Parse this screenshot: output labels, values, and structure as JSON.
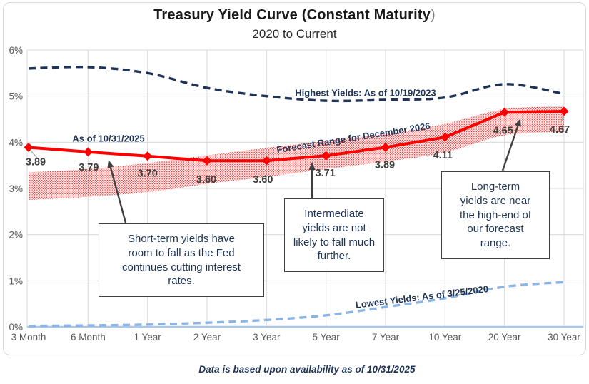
{
  "header": {
    "title_bold": "Treasury Yield Curve (Constant Maturity",
    "title_tail": ")",
    "subtitle": "2020 to Current"
  },
  "footer": "Data is based upon availability as of 10/31/2025",
  "colors": {
    "navy": "#1F3455",
    "red": "#FF0000",
    "light_blue": "#8CB4E4",
    "axis_blue": "#A9C8EA",
    "grid": "#D9D9D9",
    "tick_label": "#595959",
    "value_label": "#3F3F3F",
    "arrow": "#404040"
  },
  "chart_data": {
    "type": "line",
    "title": "Treasury Yield Curve (Constant Maturity)",
    "subtitle": "2020 to Current",
    "categories": [
      "3 Month",
      "6 Month",
      "1 Year",
      "2 Year",
      "3 Year",
      "5 Year",
      "7 Year",
      "10 Year",
      "20 Year",
      "30 Year"
    ],
    "ylim": [
      0,
      6
    ],
    "yticks": [
      "0%",
      "1%",
      "2%",
      "3%",
      "4%",
      "5%",
      "6%"
    ],
    "grid": true,
    "series": [
      {
        "name": "Highest Yields: As of 10/19/2023",
        "values": [
          5.6,
          5.63,
          5.5,
          5.18,
          5.0,
          4.9,
          4.92,
          4.97,
          5.26,
          5.05
        ],
        "color": "#1F3455",
        "style": "dashed",
        "smooth": true,
        "marker": "none"
      },
      {
        "name": "As of 10/31/2025",
        "values": [
          3.89,
          3.79,
          3.7,
          3.6,
          3.6,
          3.71,
          3.89,
          4.11,
          4.65,
          4.67
        ],
        "color": "#FF0000",
        "style": "solid",
        "smooth": false,
        "marker": "diamond",
        "data_labels": true
      },
      {
        "name": "Lowest Yields: As of 3/25/2020",
        "values": [
          0.02,
          0.03,
          0.05,
          0.09,
          0.15,
          0.25,
          0.43,
          0.62,
          0.87,
          0.97
        ],
        "color": "#8CB4E4",
        "style": "dashed",
        "smooth": true,
        "marker": "none"
      }
    ],
    "forecast_band": {
      "label": "Forecast Range for December 2026",
      "upper": [
        3.35,
        3.42,
        3.55,
        3.72,
        3.88,
        4.03,
        4.18,
        4.4,
        4.72,
        4.78
      ],
      "lower": [
        2.75,
        2.82,
        2.92,
        3.1,
        3.25,
        3.42,
        3.58,
        3.78,
        4.15,
        4.22
      ],
      "color": "#FF0000",
      "fill": "dotted"
    }
  },
  "annotations": {
    "callouts": [
      {
        "text": "Short-term yields have room to fall as the Fed continues cutting interest rates."
      },
      {
        "text": "Intermediate yields are not likely to fall much further."
      },
      {
        "text": "Long-term yields are near the high-end of our forecast range."
      }
    ]
  }
}
